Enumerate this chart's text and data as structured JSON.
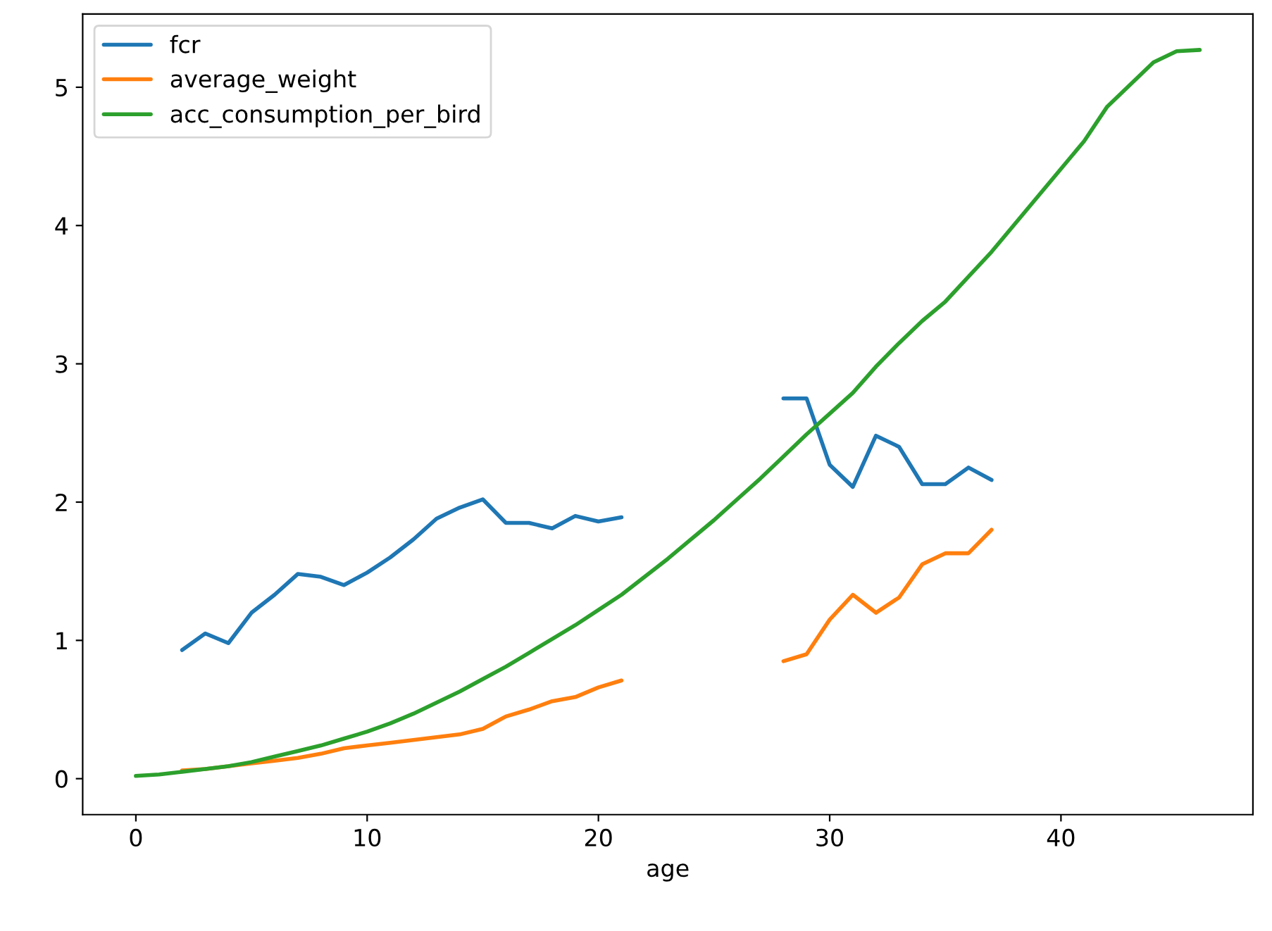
{
  "chart_data": {
    "type": "line",
    "xlabel": "age",
    "x": [
      0,
      1,
      2,
      3,
      4,
      5,
      6,
      7,
      8,
      9,
      10,
      11,
      12,
      13,
      14,
      15,
      16,
      17,
      18,
      19,
      20,
      21,
      22,
      23,
      24,
      25,
      26,
      27,
      28,
      29,
      30,
      31,
      32,
      33,
      34,
      35,
      36,
      37,
      38,
      39,
      40,
      41,
      42,
      43,
      44,
      45,
      46
    ],
    "series": [
      {
        "name": "fcr",
        "color": "#1f77b4",
        "values": [
          null,
          null,
          0.93,
          1.05,
          0.98,
          1.2,
          1.33,
          1.48,
          1.46,
          1.4,
          1.49,
          1.6,
          1.73,
          1.88,
          1.96,
          2.02,
          1.85,
          1.85,
          1.81,
          1.9,
          1.86,
          1.89,
          null,
          null,
          null,
          null,
          null,
          null,
          2.75,
          2.75,
          2.27,
          2.11,
          2.48,
          2.4,
          2.13,
          2.13,
          2.25,
          2.16,
          null,
          null,
          null,
          null,
          null,
          null,
          null,
          null,
          null
        ]
      },
      {
        "name": "average_weight",
        "color": "#ff7f0e",
        "values": [
          null,
          null,
          0.06,
          0.07,
          0.09,
          0.11,
          0.13,
          0.15,
          0.18,
          0.22,
          0.24,
          0.26,
          0.28,
          0.3,
          0.32,
          0.36,
          0.45,
          0.5,
          0.56,
          0.59,
          0.66,
          0.71,
          null,
          null,
          null,
          null,
          null,
          null,
          0.85,
          0.9,
          1.15,
          1.33,
          1.2,
          1.31,
          1.55,
          1.63,
          1.63,
          1.8,
          null,
          null,
          null,
          null,
          null,
          null,
          null,
          null,
          null
        ]
      },
      {
        "name": "acc_consumption_per_bird",
        "color": "#2ca02c",
        "values": [
          0.02,
          0.03,
          0.05,
          0.07,
          0.09,
          0.12,
          0.16,
          0.2,
          0.24,
          0.29,
          0.34,
          0.4,
          0.47,
          0.55,
          0.63,
          0.72,
          0.81,
          0.91,
          1.01,
          1.11,
          1.22,
          1.33,
          1.46,
          1.59,
          1.73,
          1.87,
          2.02,
          2.17,
          2.33,
          2.49,
          2.64,
          2.79,
          2.98,
          3.15,
          3.31,
          3.45,
          3.63,
          3.81,
          4.01,
          4.21,
          4.41,
          4.61,
          4.86,
          5.02,
          5.18,
          5.26,
          5.27
        ]
      }
    ],
    "xlim": [
      -2.3,
      48.3
    ],
    "ylim": [
      -0.26,
      5.53
    ],
    "xticks": [
      0,
      10,
      20,
      30,
      40
    ],
    "yticks": [
      0,
      1,
      2,
      3,
      4,
      5
    ],
    "legend": "top left",
    "grid": false
  }
}
